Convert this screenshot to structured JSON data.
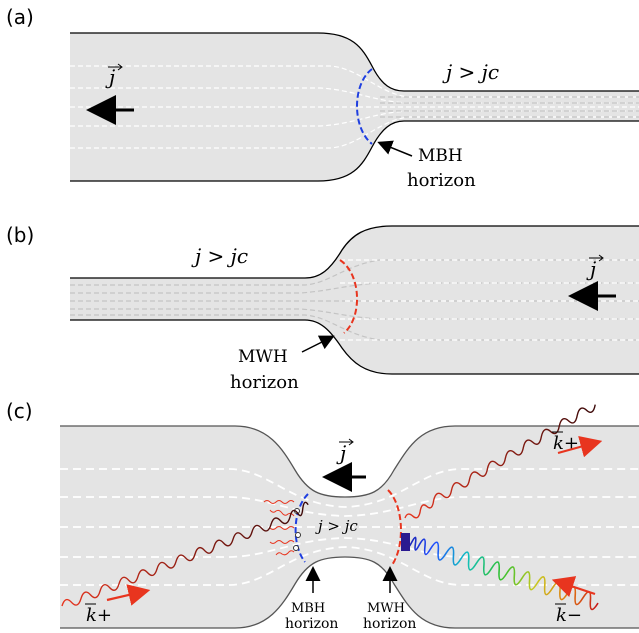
{
  "panels": {
    "a": {
      "label": "(a)",
      "flow_condition": "j > jc",
      "current_vector": "j",
      "horizon_name": "MBH",
      "horizon_word": "horizon"
    },
    "b": {
      "label": "(b)",
      "flow_condition": "j > jc",
      "current_vector": "j",
      "horizon_name": "MWH",
      "horizon_word": "horizon"
    },
    "c": {
      "label": "(c)",
      "flow_condition": "j > jc",
      "current_vector": "j",
      "left_horizon_name": "MBH",
      "left_horizon_word": "horizon",
      "right_horizon_name": "MWH",
      "right_horizon_word": "horizon",
      "k_plus_left": "k+",
      "k_plus_right": "k+",
      "k_minus": "k−"
    }
  },
  "colors": {
    "fill": "#e4e4e4",
    "outline": "#000000",
    "streamline": "#ffffff",
    "streamline_narrow": "#c4c4c4",
    "mbh_horizon": "#1f3fe0",
    "mwh_horizon": "#e8351f",
    "wave_red": "#e8351f"
  }
}
